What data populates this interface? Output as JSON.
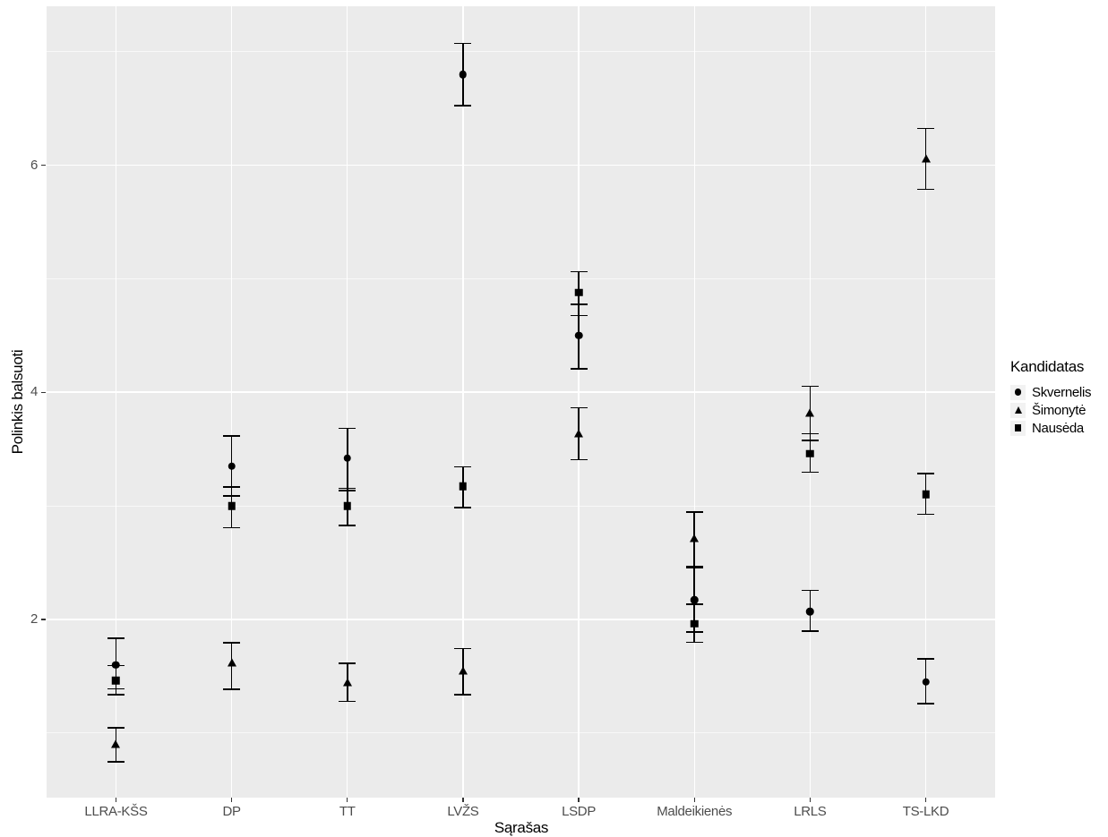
{
  "colors": {
    "panel_background": "#EBEBEB",
    "grid": "#FFFFFF",
    "axis_text": "#4D4D4D",
    "tick_marks": "#333333",
    "marker": "#000000",
    "page_background": "#FFFFFF"
  },
  "chart_data": {
    "type": "scatter",
    "title": "",
    "xlabel": "Sąrašas",
    "ylabel": "Polinkis balsuoti",
    "legend_title": "Kandidatas",
    "legend_position": "right",
    "grid": "on",
    "y_ticks": [
      2,
      4,
      6
    ],
    "y_tick_labels": [
      "2",
      "4",
      "6"
    ],
    "y_minor": [
      1,
      3,
      5,
      7
    ],
    "ylim": [
      0.43,
      7.4
    ],
    "categories": [
      "LLRA-KŠS",
      "DP",
      "TT",
      "LVŽS",
      "LSDP",
      "Maldeikienės",
      "LRLS",
      "TS-LKD"
    ],
    "series": [
      {
        "name": "Skvernelis",
        "marker": "circle",
        "values": [
          1.6,
          3.35,
          3.42,
          6.8,
          4.5,
          2.17,
          2.07,
          1.45
        ],
        "ci_low": [
          1.38,
          3.08,
          3.13,
          6.52,
          4.2,
          1.88,
          1.89,
          1.25
        ],
        "ci_high": [
          1.84,
          3.62,
          3.69,
          7.08,
          4.78,
          2.46,
          2.26,
          1.66
        ]
      },
      {
        "name": "Šimonytė",
        "marker": "triangle",
        "values": [
          0.9,
          1.62,
          1.45,
          1.55,
          3.64,
          2.72,
          3.82,
          6.06
        ],
        "ci_low": [
          0.74,
          1.38,
          1.27,
          1.33,
          3.4,
          2.46,
          3.57,
          5.78
        ],
        "ci_high": [
          1.05,
          1.8,
          1.62,
          1.75,
          3.87,
          2.95,
          4.06,
          6.33
        ]
      },
      {
        "name": "Nausėda",
        "marker": "square",
        "values": [
          1.46,
          3.0,
          3.0,
          3.17,
          4.88,
          1.96,
          3.46,
          3.1
        ],
        "ci_low": [
          1.33,
          2.8,
          2.82,
          2.98,
          4.67,
          1.79,
          3.29,
          2.92
        ],
        "ci_high": [
          1.6,
          3.17,
          3.16,
          3.35,
          5.07,
          2.14,
          3.64,
          3.29
        ]
      }
    ]
  }
}
